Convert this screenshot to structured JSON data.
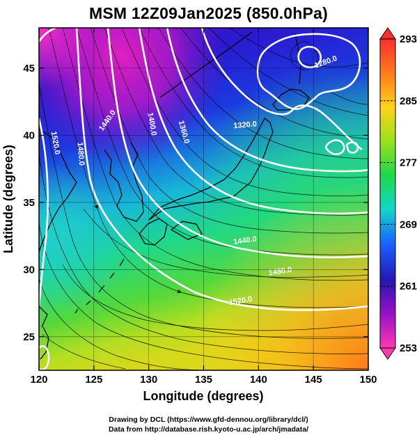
{
  "title": "MSM 12Z09Jan2025 (850.0hPa)",
  "map": {
    "lon_range": [
      120,
      150
    ],
    "lat_range": [
      22.5,
      48
    ],
    "x_ticks": [
      {
        "value": 120,
        "label": "120"
      },
      {
        "value": 125,
        "label": "125"
      },
      {
        "value": 130,
        "label": "130"
      },
      {
        "value": 135,
        "label": "135"
      },
      {
        "value": 140,
        "label": "140"
      },
      {
        "value": 145,
        "label": "145"
      },
      {
        "value": 150,
        "label": "150"
      }
    ],
    "y_ticks": [
      {
        "value": 25,
        "label": "25"
      },
      {
        "value": 30,
        "label": "30"
      },
      {
        "value": 35,
        "label": "35"
      },
      {
        "value": 40,
        "label": "40"
      },
      {
        "value": 45,
        "label": "45"
      }
    ],
    "xlabel": "Longitude (degrees)",
    "ylabel": "Latitude  (degrees)",
    "contour_labels": [
      {
        "text": "1280.0",
        "lon": 146.2,
        "lat": 45.3,
        "rot": -20
      },
      {
        "text": "1520.0",
        "lon": 121.3,
        "lat": 39.4,
        "rot": 80
      },
      {
        "text": "1480.0",
        "lon": 123.6,
        "lat": 38.6,
        "rot": 85
      },
      {
        "text": "1440.0",
        "lon": 126.4,
        "lat": 41.0,
        "rot": -55
      },
      {
        "text": "1400.0",
        "lon": 130.1,
        "lat": 40.8,
        "rot": 80
      },
      {
        "text": "1360.0",
        "lon": 133.0,
        "lat": 40.2,
        "rot": 75
      },
      {
        "text": "1320.0",
        "lon": 138.8,
        "lat": 40.6,
        "rot": -5
      },
      {
        "text": "1440.0",
        "lon": 138.8,
        "lat": 32.0,
        "rot": -8
      },
      {
        "text": "1480.0",
        "lon": 142.0,
        "lat": 29.7,
        "rot": -8
      },
      {
        "text": "1520.0",
        "lon": 138.4,
        "lat": 27.5,
        "rot": -10
      }
    ],
    "grid": true
  },
  "colorbar": {
    "min": 253,
    "max": 293,
    "tick_labels": [
      "293",
      "285",
      "277",
      "269",
      "261",
      "253"
    ],
    "colors": [
      "#ff2e2e",
      "#ff7a1a",
      "#ffd21a",
      "#9be01a",
      "#1ed84a",
      "#14d6c8",
      "#1a5cff",
      "#2418b0",
      "#9a10c8",
      "#ff3ab0"
    ]
  },
  "footer": {
    "line1": "Drawing by DCL (https://www.gfd-dennou.org/library/dcl/)",
    "line2": "Data from http://database.rish.kyoto-u.ac.jp/arch/jmadata/"
  }
}
